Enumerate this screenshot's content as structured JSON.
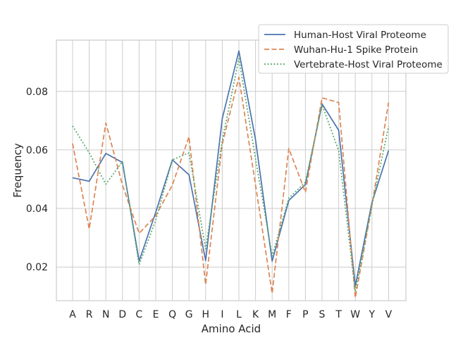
{
  "chart_data": {
    "type": "line",
    "xlabel": "Amino Acid",
    "ylabel": "Frequency",
    "categories": [
      "A",
      "R",
      "N",
      "D",
      "C",
      "E",
      "Q",
      "G",
      "H",
      "I",
      "L",
      "K",
      "M",
      "F",
      "P",
      "S",
      "T",
      "W",
      "Y",
      "V"
    ],
    "yticks": [
      "0.02",
      "0.04",
      "0.06",
      "0.08"
    ],
    "ylim": [
      0.0085,
      0.0975
    ],
    "grid": true,
    "legend_position": "top-right",
    "series": [
      {
        "name": "Human-Host Viral Proteome",
        "color": "#4c72b0",
        "dash": "solid",
        "values": [
          0.0505,
          0.0493,
          0.0588,
          0.0557,
          0.022,
          0.0387,
          0.0566,
          0.0515,
          0.0222,
          0.0707,
          0.0938,
          0.0635,
          0.022,
          0.0427,
          0.0482,
          0.0757,
          0.0667,
          0.0135,
          0.042,
          0.0598
        ]
      },
      {
        "name": "Wuhan-Hu-1 Spike Protein",
        "color": "#dd8452",
        "dash": "dashed",
        "values": [
          0.0622,
          0.033,
          0.0692,
          0.048,
          0.0315,
          0.0375,
          0.048,
          0.0645,
          0.014,
          0.062,
          0.0848,
          0.048,
          0.011,
          0.0605,
          0.0455,
          0.0778,
          0.0762,
          0.0095,
          0.041,
          0.0762
        ]
      },
      {
        "name": "Vertebrate-Host Viral Proteome",
        "color": "#55a868",
        "dash": "dotted",
        "values": [
          0.0682,
          0.059,
          0.0483,
          0.056,
          0.0208,
          0.036,
          0.0566,
          0.059,
          0.0262,
          0.0632,
          0.0912,
          0.057,
          0.0238,
          0.0435,
          0.049,
          0.0755,
          0.0597,
          0.0115,
          0.041,
          0.068
        ]
      }
    ]
  }
}
